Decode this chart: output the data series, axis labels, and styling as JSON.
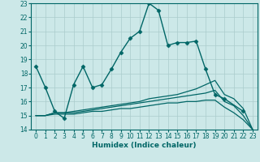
{
  "title": "",
  "xlabel": "Humidex (Indice chaleur)",
  "bg_color": "#cce8e8",
  "line_color": "#006666",
  "grid_color": "#aacccc",
  "xlim": [
    -0.5,
    23.5
  ],
  "ylim": [
    14,
    23
  ],
  "yticks": [
    14,
    15,
    16,
    17,
    18,
    19,
    20,
    21,
    22,
    23
  ],
  "xticks": [
    0,
    1,
    2,
    3,
    4,
    5,
    6,
    7,
    8,
    9,
    10,
    11,
    12,
    13,
    14,
    15,
    16,
    17,
    18,
    19,
    20,
    21,
    22,
    23
  ],
  "series": [
    {
      "x": [
        0,
        1,
        2,
        3,
        4,
        5,
        6,
        7,
        8,
        9,
        10,
        11,
        12,
        13,
        14,
        15,
        16,
        17,
        18,
        19,
        20,
        22
      ],
      "y": [
        18.5,
        17.0,
        15.3,
        14.8,
        17.2,
        18.5,
        17.0,
        17.2,
        18.3,
        19.5,
        20.5,
        21.0,
        23.0,
        22.5,
        20.0,
        20.2,
        20.2,
        20.3,
        18.3,
        16.5,
        16.2,
        15.3
      ],
      "marker": "D",
      "markersize": 2.5,
      "linewidth": 1.0
    },
    {
      "x": [
        0,
        1,
        2,
        3,
        4,
        5,
        6,
        7,
        8,
        9,
        10,
        11,
        12,
        13,
        14,
        15,
        16,
        17,
        18,
        19,
        20,
        21,
        22,
        23
      ],
      "y": [
        15.0,
        15.0,
        15.2,
        15.2,
        15.3,
        15.4,
        15.5,
        15.6,
        15.7,
        15.8,
        15.9,
        16.0,
        16.2,
        16.3,
        16.4,
        16.5,
        16.7,
        16.9,
        17.2,
        17.5,
        16.5,
        16.2,
        15.5,
        14.0
      ],
      "marker": null,
      "markersize": 0,
      "linewidth": 0.9
    },
    {
      "x": [
        0,
        1,
        2,
        3,
        4,
        5,
        6,
        7,
        8,
        9,
        10,
        11,
        12,
        13,
        14,
        15,
        16,
        17,
        18,
        19,
        20,
        21,
        22,
        23
      ],
      "y": [
        15.0,
        15.0,
        15.2,
        15.2,
        15.2,
        15.3,
        15.4,
        15.5,
        15.6,
        15.7,
        15.8,
        15.9,
        16.0,
        16.1,
        16.2,
        16.3,
        16.4,
        16.5,
        16.6,
        16.8,
        16.0,
        15.7,
        15.0,
        14.0
      ],
      "marker": null,
      "markersize": 0,
      "linewidth": 0.9
    },
    {
      "x": [
        0,
        1,
        2,
        3,
        4,
        5,
        6,
        7,
        8,
        9,
        10,
        11,
        12,
        13,
        14,
        15,
        16,
        17,
        18,
        19,
        20,
        21,
        22,
        23
      ],
      "y": [
        15.0,
        15.0,
        15.1,
        15.1,
        15.1,
        15.2,
        15.3,
        15.3,
        15.4,
        15.5,
        15.5,
        15.6,
        15.7,
        15.8,
        15.9,
        15.9,
        16.0,
        16.0,
        16.1,
        16.1,
        15.6,
        15.2,
        14.7,
        14.0
      ],
      "marker": null,
      "markersize": 0,
      "linewidth": 0.9
    }
  ]
}
